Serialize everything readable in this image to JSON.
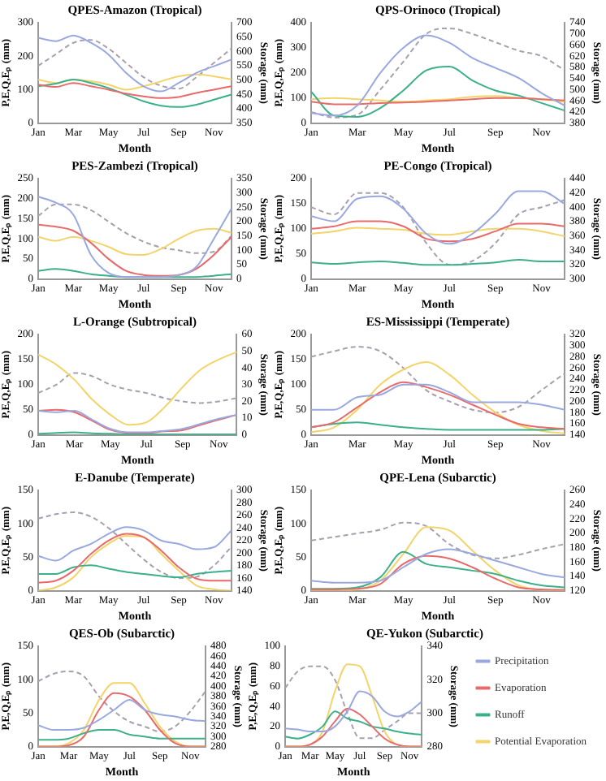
{
  "chart_data": [
    {
      "type": "line",
      "title": "QPES-Amazon (Tropical)",
      "xlabel": "Month",
      "ylabel": "P,E,Q,Eₚ (mm)",
      "y2label": "Storage (mm)",
      "marker": "none",
      "categories": [
        "Jan",
        null,
        "Mar",
        null,
        "May",
        null,
        "Jul",
        null,
        "Sep",
        null,
        "Nov",
        null
      ],
      "ylim": [
        0,
        300
      ],
      "yticks": [
        0,
        100,
        200,
        300
      ],
      "y2lim": [
        350,
        700
      ],
      "y2ticks": [
        350,
        400,
        450,
        500,
        550,
        600,
        650,
        700
      ],
      "series": [
        {
          "color": "#9aa8e0",
          "values": [
            255,
            245,
            262,
            240,
            205,
            150,
            110,
            95,
            120,
            150,
            170,
            190
          ]
        },
        {
          "color": "#e86a6a",
          "values": [
            115,
            108,
            120,
            110,
            100,
            88,
            80,
            75,
            78,
            90,
            100,
            110
          ]
        },
        {
          "color": "#3cb08a",
          "values": [
            110,
            118,
            130,
            120,
            105,
            85,
            65,
            52,
            48,
            55,
            70,
            85
          ]
        },
        {
          "color": "#f2d46a",
          "values": [
            130,
            120,
            130,
            125,
            115,
            100,
            110,
            125,
            140,
            145,
            140,
            130
          ]
        },
        {
          "color": "#a8a0b0",
          "axis": "y2",
          "line_style": "dashed",
          "values": [
            550,
            590,
            630,
            640,
            610,
            560,
            510,
            480,
            470,
            510,
            560,
            610
          ]
        }
      ]
    },
    {
      "type": "line",
      "title": "QPS-Orinoco (Tropical)",
      "xlabel": "Month",
      "ylabel": "P,E,Q,Eₚ (mm)",
      "y2label": "Storage (mm)",
      "marker": "none",
      "categories": [
        "Jan",
        null,
        "Mar",
        null,
        "May",
        null,
        "Jul",
        null,
        "Sep",
        null,
        "Nov",
        null
      ],
      "ylim": [
        0,
        400
      ],
      "yticks": [
        0,
        100,
        200,
        300,
        400
      ],
      "y2lim": [
        380,
        740
      ],
      "y2ticks": [
        380,
        420,
        460,
        500,
        540,
        580,
        620,
        660,
        700,
        740
      ],
      "series": [
        {
          "color": "#9aa8e0",
          "values": [
            40,
            30,
            70,
            200,
            300,
            350,
            320,
            260,
            220,
            180,
            120,
            70
          ]
        },
        {
          "color": "#e86a6a",
          "values": [
            85,
            75,
            75,
            80,
            82,
            85,
            90,
            95,
            100,
            100,
            95,
            90
          ]
        },
        {
          "color": "#3cb08a",
          "values": [
            125,
            30,
            25,
            60,
            130,
            210,
            225,
            170,
            130,
            110,
            80,
            50
          ]
        },
        {
          "color": "#f2d46a",
          "values": [
            95,
            100,
            95,
            90,
            85,
            90,
            95,
            105,
            108,
            100,
            95,
            85
          ]
        },
        {
          "color": "#a8a0b0",
          "axis": "y2",
          "line_style": "dashed",
          "values": [
            420,
            400,
            410,
            500,
            600,
            700,
            720,
            700,
            670,
            640,
            620,
            570
          ]
        }
      ]
    },
    {
      "type": "line",
      "title": "PES-Zambezi (Tropical)",
      "xlabel": "Month",
      "ylabel": "P,E,Q,Eₚ (mm)",
      "y2label": "Storage (mm)",
      "marker": "none",
      "categories": [
        "Jan",
        null,
        "Mar",
        null,
        "May",
        null,
        "Jul",
        null,
        "Sep",
        null,
        "Nov",
        null
      ],
      "ylim": [
        0,
        250
      ],
      "yticks": [
        0,
        50,
        100,
        150,
        200,
        250
      ],
      "y2lim": [
        0,
        350
      ],
      "y2ticks": [
        0,
        50,
        100,
        150,
        200,
        250,
        300,
        350
      ],
      "series": [
        {
          "color": "#9aa8e0",
          "values": [
            205,
            190,
            160,
            60,
            15,
            5,
            5,
            5,
            10,
            30,
            100,
            175
          ]
        },
        {
          "color": "#e86a6a",
          "values": [
            135,
            130,
            120,
            90,
            50,
            20,
            10,
            8,
            10,
            25,
            60,
            105
          ]
        },
        {
          "color": "#3cb08a",
          "values": [
            20,
            25,
            20,
            12,
            8,
            5,
            5,
            5,
            5,
            5,
            8,
            12
          ]
        },
        {
          "color": "#f2d46a",
          "values": [
            105,
            95,
            105,
            95,
            80,
            62,
            60,
            75,
            100,
            120,
            125,
            115
          ]
        },
        {
          "color": "#a8a0b0",
          "axis": "y2",
          "line_style": "dashed",
          "values": [
            220,
            260,
            260,
            240,
            200,
            160,
            130,
            110,
            100,
            90,
            95,
            150
          ]
        }
      ]
    },
    {
      "type": "line",
      "title": "PE-Congo (Tropical)",
      "xlabel": "Month",
      "ylabel": "P,E,Q,Eₚ (mm)",
      "y2label": "Storage (mm)",
      "marker": "none",
      "categories": [
        "Jan",
        null,
        "Mar",
        null,
        "May",
        null,
        "Jul",
        null,
        "Sep",
        null,
        "Nov",
        null
      ],
      "ylim": [
        0,
        200
      ],
      "yticks": [
        0,
        50,
        100,
        150,
        200
      ],
      "y2lim": [
        300,
        440
      ],
      "y2ticks": [
        300,
        320,
        340,
        360,
        380,
        400,
        420,
        440
      ],
      "series": [
        {
          "color": "#9aa8e0",
          "values": [
            125,
            115,
            160,
            165,
            140,
            90,
            70,
            90,
            130,
            175,
            175,
            150
          ]
        },
        {
          "color": "#e86a6a",
          "values": [
            100,
            105,
            115,
            115,
            105,
            80,
            75,
            80,
            95,
            110,
            110,
            105
          ]
        },
        {
          "color": "#3cb08a",
          "values": [
            33,
            30,
            33,
            35,
            32,
            28,
            28,
            30,
            33,
            38,
            35,
            35
          ]
        },
        {
          "color": "#f2d46a",
          "values": [
            90,
            95,
            102,
            100,
            98,
            90,
            88,
            95,
            100,
            100,
            95,
            85
          ]
        },
        {
          "color": "#a8a0b0",
          "axis": "y2",
          "line_style": "dashed",
          "values": [
            400,
            390,
            420,
            420,
            400,
            350,
            320,
            325,
            350,
            390,
            400,
            410
          ]
        }
      ]
    },
    {
      "type": "line",
      "title": "L-Orange (Subtropical)",
      "xlabel": "Month",
      "ylabel": "P,E,Q,Eₚ (mm)",
      "y2label": "Storage (mm)",
      "marker": "none",
      "categories": [
        "Jan",
        null,
        "Mar",
        null,
        "May",
        null,
        "Jul",
        null,
        "Sep",
        null,
        "Nov",
        null
      ],
      "ylim": [
        0,
        200
      ],
      "yticks": [
        0,
        50,
        100,
        150,
        200
      ],
      "y2lim": [
        0,
        60
      ],
      "y2ticks": [
        0,
        10,
        20,
        30,
        40,
        50,
        60
      ],
      "series": [
        {
          "color": "#9aa8e0",
          "values": [
            48,
            45,
            48,
            30,
            12,
            5,
            5,
            8,
            12,
            22,
            32,
            40
          ]
        },
        {
          "color": "#e86a6a",
          "values": [
            48,
            50,
            45,
            28,
            10,
            4,
            4,
            7,
            9,
            20,
            30,
            40
          ]
        },
        {
          "color": "#3cb08a",
          "values": [
            2,
            4,
            5,
            3,
            2,
            1,
            1,
            1,
            1,
            1,
            1,
            1
          ]
        },
        {
          "color": "#f2d46a",
          "values": [
            160,
            140,
            110,
            70,
            40,
            20,
            25,
            55,
            95,
            130,
            150,
            165
          ]
        },
        {
          "color": "#a8a0b0",
          "axis": "y2",
          "line_style": "dashed",
          "values": [
            25,
            30,
            37,
            35,
            30,
            27,
            25,
            22,
            20,
            19,
            20,
            22
          ]
        }
      ]
    },
    {
      "type": "line",
      "title": "ES-Mississippi (Temperate)",
      "xlabel": "Month",
      "ylabel": "P,E,Q,Eₚ (mm)",
      "y2label": "Storage (mm)",
      "marker": "none",
      "categories": [
        "Jan",
        null,
        "Mar",
        null,
        "May",
        null,
        "Jul",
        null,
        "Sep",
        null,
        "Nov",
        null
      ],
      "ylim": [
        0,
        200
      ],
      "yticks": [
        0,
        50,
        100,
        150,
        200
      ],
      "y2lim": [
        140,
        320
      ],
      "y2ticks": [
        140,
        160,
        180,
        200,
        220,
        240,
        260,
        280,
        300,
        320
      ],
      "series": [
        {
          "color": "#9aa8e0",
          "values": [
            50,
            50,
            75,
            80,
            100,
            100,
            85,
            65,
            65,
            65,
            60,
            50
          ]
        },
        {
          "color": "#e86a6a",
          "values": [
            15,
            25,
            55,
            85,
            105,
            95,
            80,
            60,
            40,
            22,
            15,
            12
          ]
        },
        {
          "color": "#3cb08a",
          "values": [
            15,
            22,
            25,
            20,
            15,
            12,
            10,
            10,
            10,
            10,
            10,
            12
          ]
        },
        {
          "color": "#f2d46a",
          "values": [
            5,
            15,
            50,
            100,
            130,
            145,
            120,
            80,
            45,
            20,
            8,
            3
          ]
        },
        {
          "color": "#a8a0b0",
          "axis": "y2",
          "line_style": "dashed",
          "values": [
            280,
            290,
            298,
            290,
            260,
            220,
            200,
            185,
            180,
            190,
            220,
            250
          ]
        }
      ]
    },
    {
      "type": "line",
      "title": "E-Danube (Temperate)",
      "xlabel": "Month",
      "ylabel": "P,E,Q,Eₚ (mm)",
      "y2label": "Storage (mm)",
      "marker": "none",
      "categories": [
        "Jan",
        null,
        "Mar",
        null,
        "May",
        null,
        "Jul",
        null,
        "Sep",
        null,
        "Nov",
        null
      ],
      "ylim": [
        0,
        150
      ],
      "yticks": [
        0,
        50,
        100,
        150
      ],
      "y2lim": [
        140,
        300
      ],
      "y2ticks": [
        140,
        160,
        180,
        200,
        220,
        240,
        260,
        280,
        300
      ],
      "series": [
        {
          "color": "#9aa8e0",
          "values": [
            52,
            45,
            60,
            70,
            85,
            95,
            90,
            75,
            70,
            62,
            65,
            90
          ]
        },
        {
          "color": "#e86a6a",
          "values": [
            12,
            15,
            30,
            55,
            75,
            85,
            80,
            60,
            35,
            18,
            15,
            15
          ]
        },
        {
          "color": "#3cb08a",
          "values": [
            25,
            25,
            35,
            38,
            33,
            28,
            25,
            22,
            20,
            25,
            28,
            30
          ]
        },
        {
          "color": "#f2d46a",
          "values": [
            0,
            5,
            20,
            50,
            70,
            82,
            80,
            55,
            30,
            8,
            2,
            0
          ]
        },
        {
          "color": "#a8a0b0",
          "axis": "y2",
          "line_style": "dashed",
          "values": [
            255,
            262,
            265,
            258,
            240,
            215,
            190,
            170,
            160,
            162,
            180,
            210
          ]
        }
      ]
    },
    {
      "type": "line",
      "title": "QPE-Lena (Subarctic)",
      "xlabel": "Month",
      "ylabel": "P,E,Q,Eₚ (mm)",
      "y2label": "Storage (mm)",
      "marker": "none",
      "categories": [
        "Jan",
        null,
        "Mar",
        null,
        "May",
        null,
        "Jul",
        null,
        "Sep",
        null,
        "Nov",
        null
      ],
      "ylim": [
        0,
        150
      ],
      "yticks": [
        0,
        50,
        100,
        150
      ],
      "y2lim": [
        120,
        260
      ],
      "y2ticks": [
        120,
        140,
        160,
        180,
        200,
        220,
        240,
        260
      ],
      "series": [
        {
          "color": "#9aa8e0",
          "values": [
            15,
            12,
            12,
            15,
            35,
            55,
            62,
            55,
            45,
            35,
            25,
            20
          ]
        },
        {
          "color": "#e86a6a",
          "values": [
            2,
            2,
            3,
            10,
            40,
            52,
            48,
            35,
            18,
            5,
            2,
            1
          ]
        },
        {
          "color": "#3cb08a",
          "values": [
            3,
            3,
            5,
            20,
            58,
            40,
            35,
            30,
            25,
            15,
            8,
            5
          ]
        },
        {
          "color": "#f2d46a",
          "values": [
            0,
            0,
            2,
            15,
            55,
            95,
            90,
            60,
            30,
            8,
            1,
            0
          ]
        },
        {
          "color": "#a8a0b0",
          "axis": "y2",
          "line_style": "dashed",
          "values": [
            190,
            195,
            200,
            205,
            215,
            210,
            185,
            170,
            165,
            170,
            178,
            185
          ]
        }
      ]
    },
    {
      "type": "line",
      "title": "QES-Ob (Subarctic)",
      "xlabel": "Month",
      "ylabel": "P,E,Q,Eₚ (mm)",
      "y2label": "Storage (mm)",
      "marker": "none",
      "categories": [
        "Jan",
        null,
        "Mar",
        null,
        "May",
        null,
        "Jul",
        null,
        "Sep",
        null,
        "Nov",
        null
      ],
      "ylim": [
        0,
        150
      ],
      "yticks": [
        0,
        50,
        100,
        150
      ],
      "y2lim": [
        280,
        480
      ],
      "y2ticks": [
        280,
        300,
        320,
        340,
        360,
        380,
        400,
        420,
        440,
        460,
        480
      ],
      "series": [
        {
          "color": "#9aa8e0",
          "values": [
            32,
            25,
            25,
            28,
            40,
            55,
            70,
            55,
            48,
            45,
            40,
            38
          ]
        },
        {
          "color": "#e86a6a",
          "values": [
            0,
            0,
            2,
            15,
            55,
            80,
            75,
            55,
            25,
            5,
            0,
            0
          ]
        },
        {
          "color": "#3cb08a",
          "values": [
            10,
            10,
            12,
            20,
            25,
            25,
            18,
            15,
            12,
            12,
            12,
            12
          ]
        },
        {
          "color": "#f2d46a",
          "values": [
            0,
            0,
            5,
            25,
            70,
            95,
            95,
            65,
            30,
            8,
            0,
            0
          ]
        },
        {
          "color": "#a8a0b0",
          "axis": "y2",
          "line_style": "dashed",
          "values": [
            410,
            425,
            430,
            420,
            380,
            350,
            330,
            320,
            310,
            320,
            350,
            390
          ]
        }
      ]
    },
    {
      "type": "line",
      "title": "QE-Yukon (Subarctic)",
      "xlabel": "Month",
      "ylabel": "P,E,Q,Eₚ (mm)",
      "y2label": "Storage (mm)",
      "marker": "none",
      "legend": "right",
      "categories": [
        "Jan",
        null,
        "Mar",
        null,
        "May",
        null,
        "Jul",
        null,
        "Sep",
        null,
        "Nov",
        null
      ],
      "ylim": [
        0,
        100
      ],
      "yticks": [
        0,
        20,
        40,
        60,
        80,
        100
      ],
      "y2lim": [
        280,
        340
      ],
      "y2ticks": [
        280,
        300,
        320,
        340
      ],
      "series": [
        {
          "name": "Precipitation",
          "color": "#9aa8e0",
          "values": [
            18,
            17,
            15,
            15,
            20,
            35,
            55,
            50,
            35,
            30,
            35,
            45
          ]
        },
        {
          "name": "Evaporation",
          "color": "#e86a6a",
          "values": [
            0,
            0,
            2,
            10,
            25,
            38,
            32,
            20,
            8,
            2,
            0,
            0
          ]
        },
        {
          "name": "Runoff",
          "color": "#3cb08a",
          "values": [
            10,
            8,
            12,
            20,
            35,
            28,
            25,
            20,
            18,
            15,
            13,
            12
          ]
        },
        {
          "name": "Potential Evaporation",
          "color": "#f2d46a",
          "values": [
            0,
            0,
            2,
            15,
            55,
            82,
            80,
            50,
            15,
            2,
            0,
            0
          ]
        },
        {
          "color": "#a8a0b0",
          "axis": "y2",
          "line_style": "dashed",
          "values": [
            315,
            325,
            328,
            328,
            320,
            300,
            285,
            285,
            290,
            295,
            300,
            300
          ]
        }
      ]
    }
  ]
}
